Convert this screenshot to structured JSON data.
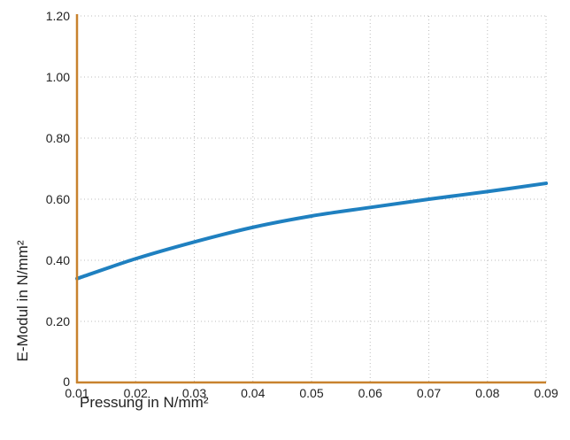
{
  "chart_data": {
    "type": "line",
    "xlabel": "Pressung in N/mm²",
    "ylabel": "E-Modul in N/mm²",
    "xlim": [
      0.01,
      0.09
    ],
    "ylim": [
      0,
      1.2
    ],
    "x_ticks": [
      "0.01",
      "0.02",
      "0.03",
      "0.04",
      "0.05",
      "0.06",
      "0.07",
      "0.08",
      "0.09"
    ],
    "y_ticks": [
      "0",
      "0.20",
      "0.40",
      "0.60",
      "0.80",
      "1.00",
      "1.20"
    ],
    "grid": true,
    "series": [
      {
        "x": [
          0.01,
          0.02,
          0.03,
          0.04,
          0.05,
          0.06,
          0.07,
          0.08,
          0.09
        ],
        "y": [
          0.34,
          0.405,
          0.46,
          0.508,
          0.545,
          0.573,
          0.6,
          0.625,
          0.652
        ]
      }
    ],
    "colors": {
      "line": "#1f80c0",
      "axis": "#c8822e",
      "grid": "#bdbdbd"
    }
  }
}
